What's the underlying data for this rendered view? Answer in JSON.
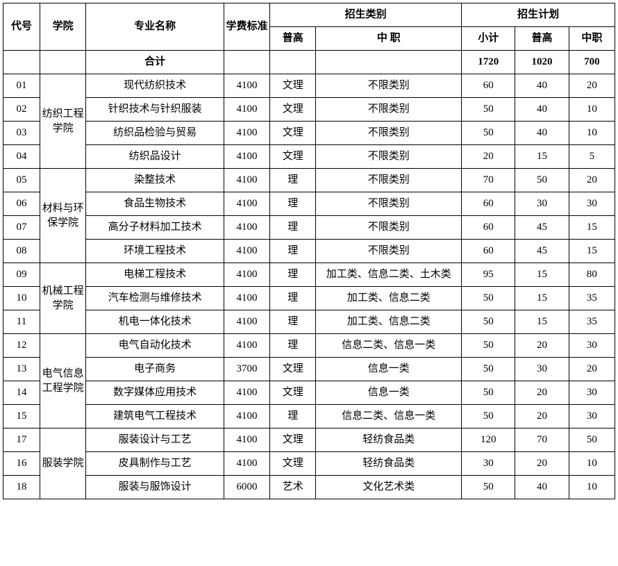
{
  "header": {
    "code": "代号",
    "college": "学院",
    "major": "专业名称",
    "fee": "学费标准",
    "enroll_type": "招生类别",
    "enroll_plan": "招生计划",
    "pg": "普高",
    "zz": "中 职",
    "subtotal": "小计",
    "plan_pg": "普高",
    "plan_zz": "中职"
  },
  "total_row": {
    "label": "合计",
    "subtotal": "1720",
    "plan_pg": "1020",
    "plan_zz": "700"
  },
  "colleges": [
    {
      "name": "纺织工程学院",
      "rows": [
        {
          "code": "01",
          "major": "现代纺织技术",
          "fee": "4100",
          "pg": "文理",
          "zz": "不限类别",
          "sub": "60",
          "ppg": "40",
          "pzz": "20"
        },
        {
          "code": "02",
          "major": "针织技术与针织服装",
          "fee": "4100",
          "pg": "文理",
          "zz": "不限类别",
          "sub": "50",
          "ppg": "40",
          "pzz": "10"
        },
        {
          "code": "03",
          "major": "纺织品检验与贸易",
          "fee": "4100",
          "pg": "文理",
          "zz": "不限类别",
          "sub": "50",
          "ppg": "40",
          "pzz": "10"
        },
        {
          "code": "04",
          "major": "纺织品设计",
          "fee": "4100",
          "pg": "文理",
          "zz": "不限类别",
          "sub": "20",
          "ppg": "15",
          "pzz": "5"
        }
      ]
    },
    {
      "name": "材料与环保学院",
      "rows": [
        {
          "code": "05",
          "major": "染整技术",
          "fee": "4100",
          "pg": "理",
          "zz": "不限类别",
          "sub": "70",
          "ppg": "50",
          "pzz": "20"
        },
        {
          "code": "06",
          "major": "食品生物技术",
          "fee": "4100",
          "pg": "理",
          "zz": "不限类别",
          "sub": "60",
          "ppg": "30",
          "pzz": "30"
        },
        {
          "code": "07",
          "major": "高分子材料加工技术",
          "fee": "4100",
          "pg": "理",
          "zz": "不限类别",
          "sub": "60",
          "ppg": "45",
          "pzz": "15"
        },
        {
          "code": "08",
          "major": "环境工程技术",
          "fee": "4100",
          "pg": "理",
          "zz": "不限类别",
          "sub": "60",
          "ppg": "45",
          "pzz": "15"
        }
      ]
    },
    {
      "name": "机械工程学院",
      "rows": [
        {
          "code": "09",
          "major": "电梯工程技术",
          "fee": "4100",
          "pg": "理",
          "zz": "加工类、信息二类、土木类",
          "sub": "95",
          "ppg": "15",
          "pzz": "80"
        },
        {
          "code": "10",
          "major": "汽车检测与维修技术",
          "fee": "4100",
          "pg": "理",
          "zz": "加工类、信息二类",
          "sub": "50",
          "ppg": "15",
          "pzz": "35"
        },
        {
          "code": "11",
          "major": "机电一体化技术",
          "fee": "4100",
          "pg": "理",
          "zz": "加工类、信息二类",
          "sub": "50",
          "ppg": "15",
          "pzz": "35"
        }
      ]
    },
    {
      "name": "电气信息工程学院",
      "rows": [
        {
          "code": "12",
          "major": "电气自动化技术",
          "fee": "4100",
          "pg": "理",
          "zz": "信息二类、信息一类",
          "sub": "50",
          "ppg": "20",
          "pzz": "30"
        },
        {
          "code": "13",
          "major": "电子商务",
          "fee": "3700",
          "pg": "文理",
          "zz": "信息一类",
          "sub": "50",
          "ppg": "30",
          "pzz": "20"
        },
        {
          "code": "14",
          "major": "数字媒体应用技术",
          "fee": "4100",
          "pg": "文理",
          "zz": "信息一类",
          "sub": "50",
          "ppg": "20",
          "pzz": "30"
        },
        {
          "code": "15",
          "major": "建筑电气工程技术",
          "fee": "4100",
          "pg": "理",
          "zz": "信息二类、信息一类",
          "sub": "50",
          "ppg": "20",
          "pzz": "30"
        }
      ]
    },
    {
      "name": "服装学院",
      "rows": [
        {
          "code": "17",
          "major": "服装设计与工艺",
          "fee": "4100",
          "pg": "文理",
          "zz": "轻纺食品类",
          "sub": "120",
          "ppg": "70",
          "pzz": "50"
        },
        {
          "code": "16",
          "major": "皮具制作与工艺",
          "fee": "4100",
          "pg": "文理",
          "zz": "轻纺食品类",
          "sub": "30",
          "ppg": "20",
          "pzz": "10"
        },
        {
          "code": "18",
          "major": "服装与服饰设计",
          "fee": "6000",
          "pg": "艺术",
          "zz": "文化艺术类",
          "sub": "50",
          "ppg": "40",
          "pzz": "10"
        }
      ]
    }
  ]
}
